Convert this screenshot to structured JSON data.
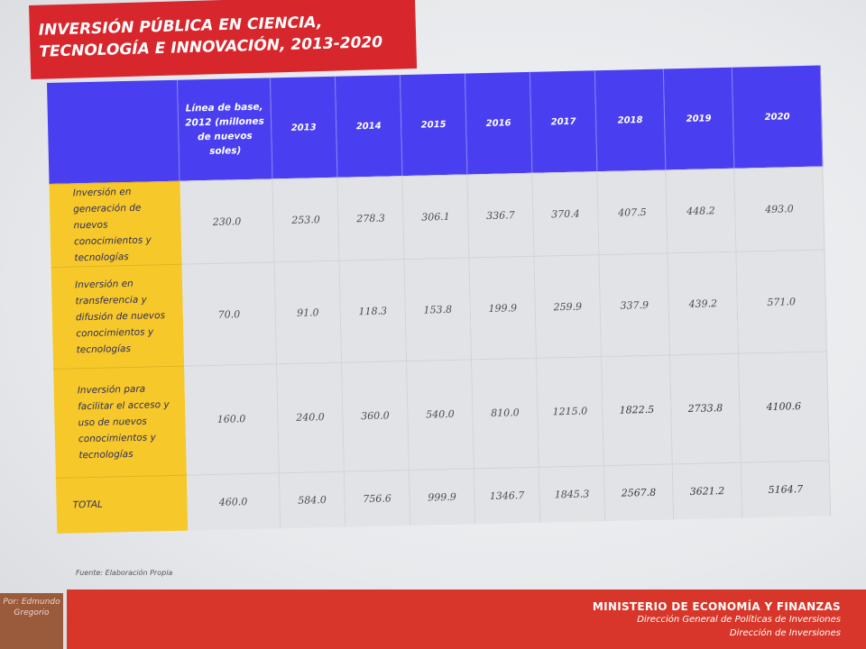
{
  "title": {
    "line1": "INVERSIÓN PÚBLICA EN CIENCIA,",
    "line2": "TECNOLOGÍA E INNOVACIÓN, 2013-2020"
  },
  "table": {
    "headers": [
      "",
      "Línea de base, 2012 (millones de nuevos soles)",
      "2013",
      "2014",
      "2015",
      "2016",
      "2017",
      "2018",
      "2019",
      "2020"
    ],
    "rows": [
      {
        "label": "Inversión en generación de nuevos conocimientos y tecnologías",
        "values": [
          "230.0",
          "253.0",
          "278.3",
          "306.1",
          "336.7",
          "370.4",
          "407.5",
          "448.2",
          "493.0"
        ]
      },
      {
        "label": "Inversión en transferencia y difusión de nuevos conocimientos y tecnologías",
        "values": [
          "70.0",
          "91.0",
          "118.3",
          "153.8",
          "199.9",
          "259.9",
          "337.9",
          "439.2",
          "571.0"
        ]
      },
      {
        "label": "Inversión para facilitar el acceso y uso de nuevos conocimientos y tecnologías",
        "values": [
          "160.0",
          "240.0",
          "360.0",
          "540.0",
          "810.0",
          "1215.0",
          "1822.5",
          "2733.8",
          "4100.6"
        ]
      },
      {
        "label": "TOTAL",
        "values": [
          "460.0",
          "584.0",
          "756.6",
          "999.9",
          "1346.7",
          "1845.3",
          "2567.8",
          "3621.2",
          "5164.7"
        ]
      }
    ]
  },
  "source": "Fuente: Elaboración Propia",
  "footer": {
    "author": "Por: Edmundo Gregorio",
    "ministry": "MINISTERIO DE ECONOMÍA Y FINANZAS",
    "line1": "Dirección General de Políticas de Inversiones",
    "line2": "Dirección de Inversiones"
  },
  "colors": {
    "title_bg": "#d8262d",
    "header_bg": "#4a3ff0",
    "label_bg": "#f7c82a",
    "cell_bg": "#e2e3e7",
    "footer_bg": "#d8362a"
  }
}
